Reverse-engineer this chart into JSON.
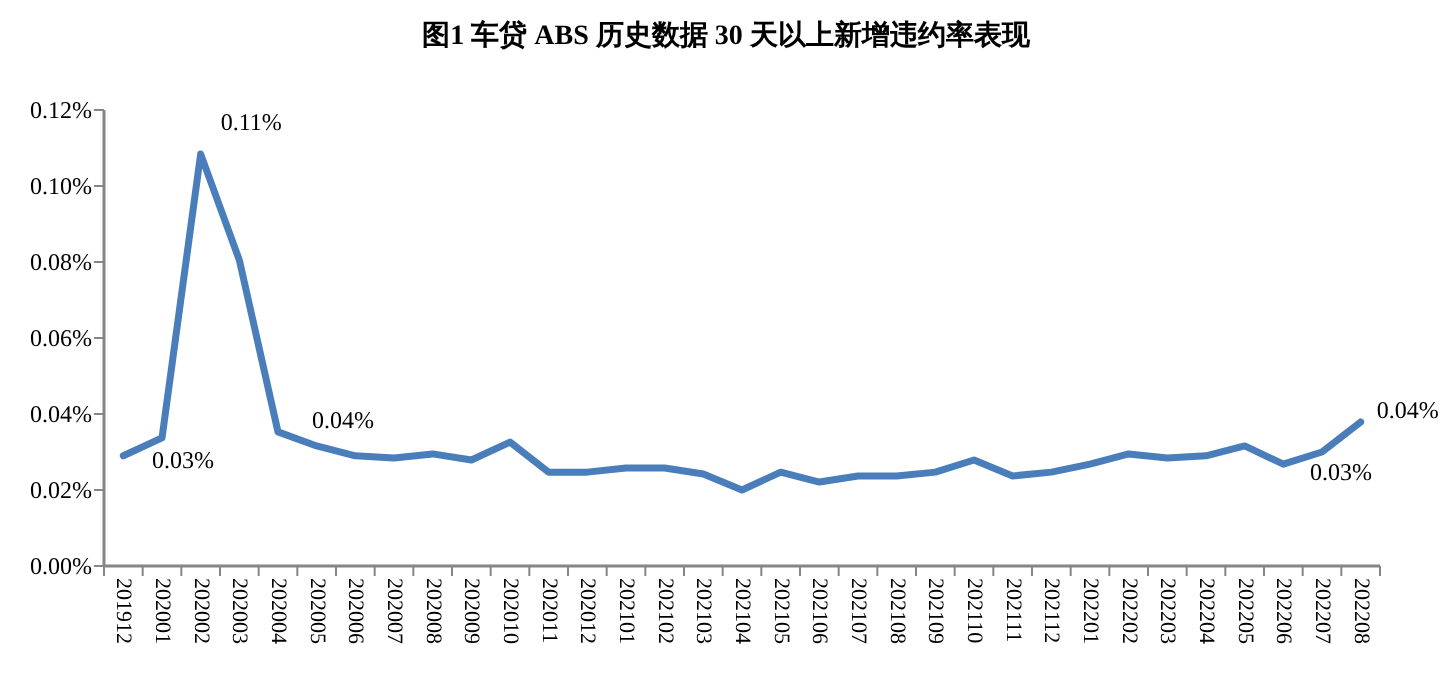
{
  "chart_data": {
    "type": "line",
    "title": "图1  车贷 ABS 历史数据 30 天以上新增违约率表现",
    "categories": [
      "201912",
      "202001",
      "202002",
      "202003",
      "202004",
      "202005",
      "202006",
      "202007",
      "202008",
      "202009",
      "202010",
      "202011",
      "202012",
      "202101",
      "202102",
      "202103",
      "202104",
      "202105",
      "202106",
      "202107",
      "202108",
      "202109",
      "202110",
      "202111",
      "202112",
      "202201",
      "202202",
      "202203",
      "202204",
      "202205",
      "202206",
      "202207",
      "202208"
    ],
    "series": [
      {
        "color": "#4a7ebb",
        "values": [
          0.029,
          0.0337,
          0.1084,
          0.0805,
          0.0353,
          0.0316,
          0.029,
          0.0284,
          0.0295,
          0.0279,
          0.0326,
          0.0247,
          0.0247,
          0.0258,
          0.0258,
          0.0242,
          0.02,
          0.0247,
          0.0221,
          0.0237,
          0.0237,
          0.0247,
          0.0279,
          0.0237,
          0.0247,
          0.0268,
          0.0295,
          0.0284,
          0.029,
          0.0316,
          0.0268,
          0.03,
          0.0379
        ]
      }
    ],
    "ylim": [
      0,
      0.12
    ],
    "yticks": [
      {
        "value": 0,
        "label": "0.00%"
      },
      {
        "value": 0.02,
        "label": "0.02%"
      },
      {
        "value": 0.04,
        "label": "0.04%"
      },
      {
        "value": 0.06,
        "label": "0.06%"
      },
      {
        "value": 0.08,
        "label": "0.08%"
      },
      {
        "value": 0.1,
        "label": "0.10%"
      },
      {
        "value": 0.12,
        "label": "0.12%"
      }
    ],
    "annotations": [
      {
        "text": "0.11%",
        "x": "202002",
        "y": 0.1084
      },
      {
        "text": "0.03%",
        "x": "202001",
        "y": 0.0337
      },
      {
        "text": "0.04%",
        "x": "202004",
        "y": 0.0353
      },
      {
        "text": "0.04%",
        "x": "202208",
        "y": 0.0379
      },
      {
        "text": "0.03%",
        "x": "202207",
        "y": 0.03
      }
    ],
    "grid": false,
    "marker": "none",
    "line_style": "solid"
  }
}
